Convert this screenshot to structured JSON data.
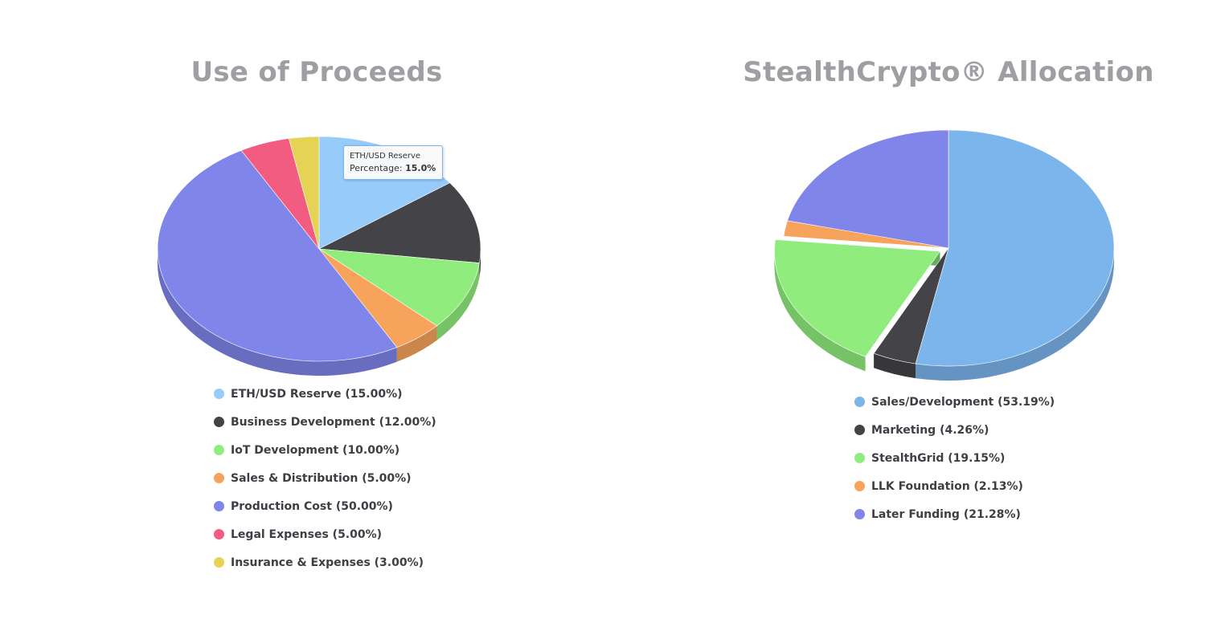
{
  "chart_data": [
    {
      "type": "pie",
      "title": "Use of Proceeds",
      "categories": [
        "ETH/USD Reserve",
        "Business Development",
        "IoT Development",
        "Sales & Distribution",
        "Production Cost",
        "Legal Expenses",
        "Insurance & Expenses"
      ],
      "values": [
        15.0,
        12.0,
        10.0,
        5.0,
        50.0,
        5.0,
        3.0
      ],
      "legend": [
        "ETH/USD Reserve (15.00%)",
        "Business Development (12.00%)",
        "IoT Development (10.00%)",
        "Sales & Distribution (5.00%)",
        "Production Cost (50.00%)",
        "Legal Expenses (5.00%)",
        "Insurance & Expenses (3.00%)"
      ],
      "colors": [
        "#96cbfa",
        "#434348",
        "#90ed7d",
        "#f7a35c",
        "#8085e9",
        "#f15c80",
        "#e4d354"
      ],
      "legend_placement": "bottom",
      "tooltip": {
        "title": "ETH/USD Reserve",
        "label": "Percentage:",
        "value": "15.0%"
      }
    },
    {
      "type": "pie",
      "title": "StealthCrypto® Allocation",
      "categories": [
        "Sales/Development",
        "Marketing",
        "StealthGrid",
        "LLK Foundation",
        "Later Funding"
      ],
      "values": [
        53.19,
        4.26,
        19.15,
        2.13,
        21.28
      ],
      "legend": [
        "Sales/Development (53.19%)",
        "Marketing (4.26%)",
        "StealthGrid (19.15%)",
        "LLK Foundation (2.13%)",
        "Later Funding (21.28%)"
      ],
      "colors": [
        "#7cb5ec",
        "#434348",
        "#90ed7d",
        "#f7a35c",
        "#8085e9"
      ],
      "legend_placement": "bottom"
    }
  ]
}
